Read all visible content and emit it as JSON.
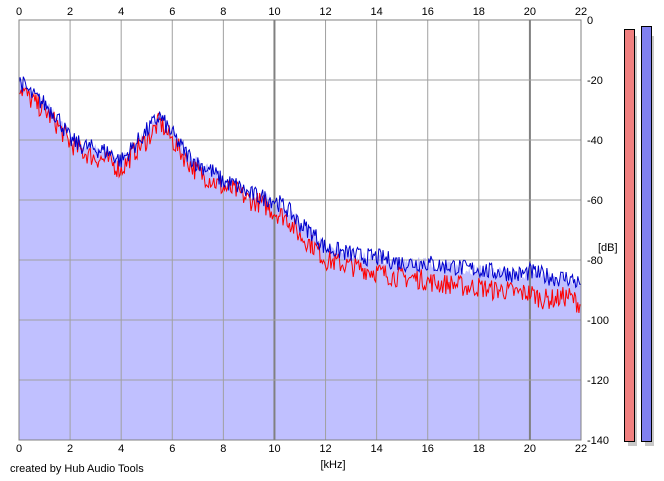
{
  "footer": {
    "credit": "created by Hub Audio Tools"
  },
  "colors": {
    "background": "#ffffff",
    "fill": "#c0c0ff",
    "left_channel": "#ff0000",
    "right_channel": "#0000cc",
    "grid": "#a0a0a0",
    "meter_left": "#f08080",
    "meter_right": "#8080f0"
  },
  "meters": [
    {
      "channel": "left",
      "level_db": -3
    },
    {
      "channel": "right",
      "level_db": -2
    }
  ],
  "chart_data": {
    "type": "area",
    "title": "",
    "xlabel": "[kHz]",
    "ylabel": "[dB]",
    "xlim": [
      0,
      22
    ],
    "ylim": [
      -140,
      0
    ],
    "x_ticks": [
      "0",
      "2",
      "4",
      "6",
      "8",
      "10",
      "12",
      "14",
      "16",
      "18",
      "20",
      "22"
    ],
    "y_ticks": [
      "0",
      "-20",
      "-40",
      "-60",
      "-80",
      "-100",
      "-120",
      "-140"
    ],
    "grid": true,
    "x": [
      0,
      0.5,
      1,
      1.5,
      2,
      2.5,
      3,
      3.5,
      4,
      4.5,
      5,
      5.5,
      6,
      6.5,
      7,
      7.5,
      8,
      8.5,
      9,
      9.5,
      10,
      10.5,
      11,
      11.5,
      12,
      12.5,
      13,
      13.5,
      14,
      14.5,
      15,
      15.5,
      16,
      16.5,
      17,
      17.5,
      18,
      18.5,
      19,
      19.5,
      20,
      20.5,
      21,
      21.5,
      22
    ],
    "series": [
      {
        "name": "",
        "color": "#ff0000",
        "values": [
          -22,
          -27,
          -30,
          -35,
          -41,
          -44,
          -46,
          -47,
          -50,
          -44,
          -40,
          -34,
          -40,
          -46,
          -51,
          -53,
          -56,
          -57,
          -60,
          -61,
          -64,
          -66,
          -72,
          -75,
          -80,
          -81,
          -82,
          -83,
          -84,
          -85,
          -86,
          -86,
          -87,
          -88,
          -88,
          -89,
          -89,
          -90,
          -90,
          -91,
          -91,
          -93,
          -93,
          -92,
          -95
        ]
      },
      {
        "name": "",
        "color": "#0000cc",
        "values": [
          -20,
          -25,
          -28,
          -32,
          -40,
          -42,
          -43,
          -44,
          -47,
          -42,
          -37,
          -32,
          -38,
          -44,
          -48,
          -50,
          -54,
          -55,
          -58,
          -59,
          -60,
          -63,
          -68,
          -71,
          -76,
          -77,
          -78,
          -79,
          -79,
          -80,
          -81,
          -81,
          -81,
          -82,
          -82,
          -83,
          -83,
          -84,
          -84,
          -85,
          -84,
          -85,
          -86,
          -86,
          -88
        ]
      }
    ]
  }
}
